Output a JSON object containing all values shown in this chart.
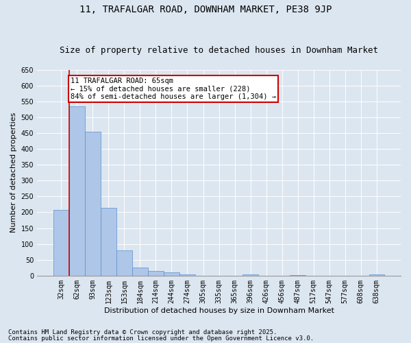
{
  "title": "11, TRAFALGAR ROAD, DOWNHAM MARKET, PE38 9JP",
  "subtitle": "Size of property relative to detached houses in Downham Market",
  "xlabel": "Distribution of detached houses by size in Downham Market",
  "ylabel": "Number of detached properties",
  "categories": [
    "32sqm",
    "62sqm",
    "93sqm",
    "123sqm",
    "153sqm",
    "184sqm",
    "214sqm",
    "244sqm",
    "274sqm",
    "305sqm",
    "335sqm",
    "365sqm",
    "396sqm",
    "426sqm",
    "456sqm",
    "487sqm",
    "517sqm",
    "547sqm",
    "577sqm",
    "608sqm",
    "638sqm"
  ],
  "values": [
    208,
    535,
    455,
    213,
    80,
    25,
    14,
    10,
    5,
    0,
    0,
    0,
    3,
    0,
    0,
    2,
    0,
    0,
    0,
    0,
    3
  ],
  "bar_color": "#aec6e8",
  "bar_edge_color": "#5b8fc9",
  "red_line_color": "#cc0000",
  "annotation_title": "11 TRAFALGAR ROAD: 65sqm",
  "annotation_line1": "← 15% of detached houses are smaller (228)",
  "annotation_line2": "84% of semi-detached houses are larger (1,304) →",
  "annotation_box_color": "#ffffff",
  "annotation_box_edge_color": "#cc0000",
  "ylim": [
    0,
    650
  ],
  "yticks": [
    0,
    50,
    100,
    150,
    200,
    250,
    300,
    350,
    400,
    450,
    500,
    550,
    600,
    650
  ],
  "footer_line1": "Contains HM Land Registry data © Crown copyright and database right 2025.",
  "footer_line2": "Contains public sector information licensed under the Open Government Licence v3.0.",
  "bg_color": "#dce6f0",
  "plot_bg_color": "#dce6f0",
  "title_fontsize": 10,
  "subtitle_fontsize": 9,
  "label_fontsize": 8,
  "tick_fontsize": 7,
  "footer_fontsize": 6.5,
  "annot_fontsize": 7.5
}
